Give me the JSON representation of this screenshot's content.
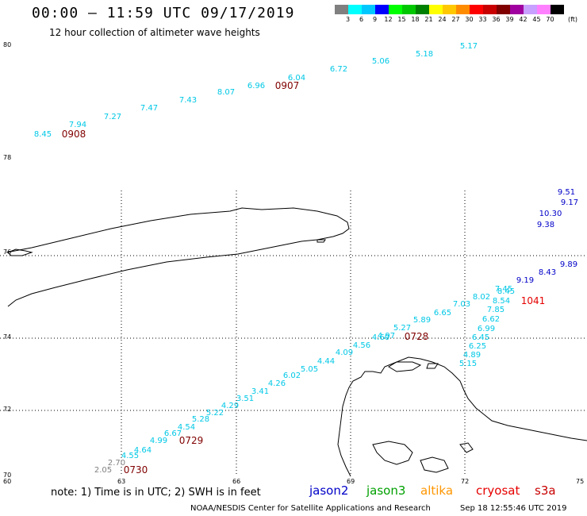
{
  "header": {
    "title": "00:00 – 11:59 UTC 09/17/2019",
    "subtitle": "12 hour collection of altimeter wave heights"
  },
  "legend": {
    "labels": [
      "3",
      "6",
      "9",
      "12",
      "15",
      "18",
      "21",
      "24",
      "27",
      "30",
      "33",
      "36",
      "39",
      "42",
      "45",
      "70"
    ],
    "colors": [
      "#808080",
      "#00ffff",
      "#00c8ff",
      "#0000ff",
      "#00ff00",
      "#00c800",
      "#008000",
      "#ffff00",
      "#ffc800",
      "#ff8c00",
      "#ff0000",
      "#c80000",
      "#800000",
      "#a000a0",
      "#c8a0ff",
      "#ff80ff",
      "#000000"
    ],
    "unit": "(ft)"
  },
  "axes": {
    "lat_labels": [
      "80",
      "78",
      "76",
      "74",
      "72",
      "70"
    ],
    "lon_labels": [
      "60",
      "63",
      "66",
      "69",
      "72",
      "75"
    ]
  },
  "tracks": {
    "colors": {
      "cyan": "#00c8e6",
      "blue": "#0000c8",
      "gray": "#808080",
      "time": "#800000",
      "red": "#e60000"
    },
    "points": [
      {
        "v": "8.45",
        "c": "cyan"
      },
      {
        "v": "7.94",
        "c": "cyan"
      },
      {
        "v": "7.27",
        "c": "cyan"
      },
      {
        "v": "7.47",
        "c": "cyan"
      },
      {
        "v": "7.43",
        "c": "cyan"
      },
      {
        "v": "8.07",
        "c": "cyan"
      },
      {
        "v": "6.96",
        "c": "cyan"
      },
      {
        "v": "6.04",
        "c": "cyan"
      },
      {
        "v": "6.72",
        "c": "cyan"
      },
      {
        "v": "5.06",
        "c": "cyan"
      },
      {
        "v": "5.18",
        "c": "cyan"
      },
      {
        "v": "5.17",
        "c": "cyan"
      },
      {
        "v": "9.51",
        "c": "blue"
      },
      {
        "v": "9.17",
        "c": "blue"
      },
      {
        "v": "10.30",
        "c": "blue"
      },
      {
        "v": "9.38",
        "c": "blue"
      },
      {
        "v": "9.89",
        "c": "blue"
      },
      {
        "v": "8.43",
        "c": "blue"
      },
      {
        "v": "9.19",
        "c": "blue"
      },
      {
        "v": "7.45",
        "c": "cyan"
      },
      {
        "v": "8.45",
        "c": "cyan"
      },
      {
        "v": "8.02",
        "c": "cyan"
      },
      {
        "v": "8.54",
        "c": "cyan"
      },
      {
        "v": "7.85",
        "c": "cyan"
      },
      {
        "v": "7.03",
        "c": "cyan"
      },
      {
        "v": "6.65",
        "c": "cyan"
      },
      {
        "v": "6.62",
        "c": "cyan"
      },
      {
        "v": "6.99",
        "c": "cyan"
      },
      {
        "v": "5.89",
        "c": "cyan"
      },
      {
        "v": "6.45",
        "c": "cyan"
      },
      {
        "v": "5.27",
        "c": "cyan"
      },
      {
        "v": "6.25",
        "c": "cyan"
      },
      {
        "v": "4.89",
        "c": "cyan"
      },
      {
        "v": "5.15",
        "c": "cyan"
      },
      {
        "v": "4.97",
        "c": "cyan"
      },
      {
        "v": "4.60",
        "c": "cyan"
      },
      {
        "v": "4.56",
        "c": "cyan"
      },
      {
        "v": "4.09",
        "c": "cyan"
      },
      {
        "v": "4.44",
        "c": "cyan"
      },
      {
        "v": "5.05",
        "c": "cyan"
      },
      {
        "v": "6.02",
        "c": "cyan"
      },
      {
        "v": "4.26",
        "c": "cyan"
      },
      {
        "v": "3.41",
        "c": "cyan"
      },
      {
        "v": "3.51",
        "c": "cyan"
      },
      {
        "v": "4.29",
        "c": "cyan"
      },
      {
        "v": "5.22",
        "c": "cyan"
      },
      {
        "v": "5.28",
        "c": "cyan"
      },
      {
        "v": "4.54",
        "c": "cyan"
      },
      {
        "v": "6.67",
        "c": "cyan"
      },
      {
        "v": "4.99",
        "c": "cyan"
      },
      {
        "v": "4.64",
        "c": "cyan"
      },
      {
        "v": "4.55",
        "c": "cyan"
      },
      {
        "v": "2.70",
        "c": "gray"
      },
      {
        "v": "2.05",
        "c": "gray"
      }
    ],
    "times": [
      {
        "v": "0908",
        "c": "time"
      },
      {
        "v": "0907",
        "c": "time"
      },
      {
        "v": "1041",
        "c": "red"
      },
      {
        "v": "0728",
        "c": "time"
      },
      {
        "v": "0729",
        "c": "time"
      },
      {
        "v": "0730",
        "c": "time"
      }
    ]
  },
  "footer": {
    "note": "note: 1) Time is in UTC; 2) SWH is in feet",
    "satellites": [
      {
        "name": "jason2",
        "color": "#0000c8"
      },
      {
        "name": "jason3",
        "color": "#00a000"
      },
      {
        "name": "altika",
        "color": "#ff9600"
      },
      {
        "name": "cryosat",
        "color": "#e60000"
      },
      {
        "name": "s3a",
        "color": "#c80000"
      }
    ],
    "credit": "NOAA/NESDIS Center for Satellite Applications and Research",
    "timestamp": "Sep 18 12:55:46 UTC 2019"
  }
}
